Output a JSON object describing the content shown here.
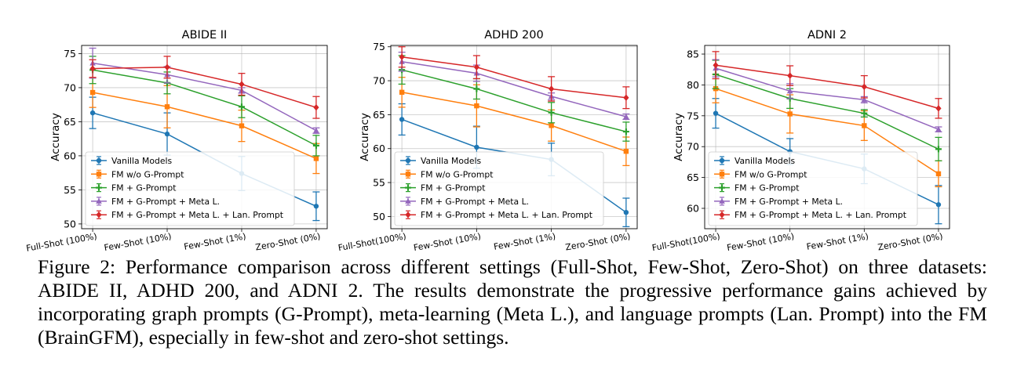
{
  "caption": "Figure 2: Performance comparison across different settings (Full-Shot, Few-Shot, Zero-Shot) on three datasets: ABIDE II, ADHD 200, and ADNI 2. The results demonstrate the progressive performance gains achieved by incorporating graph prompts (G-Prompt), meta-learning (Meta L.), and language prompts (Lan. Prompt) into the FM (BrainGFM), especially in few-shot and zero-shot settings.",
  "chart_data": [
    {
      "type": "line",
      "title": "ABIDE II",
      "ylabel": "Accuracy",
      "xlabel": "",
      "categories": [
        "Full-Shot (100%)",
        "Few-Shot (10%)",
        "Few-Shot (1%)",
        "Zero-Shot (0%)"
      ],
      "ylim": [
        49.3,
        76.2
      ],
      "yticks": [
        50,
        55,
        60,
        65,
        70,
        75
      ],
      "grid": true,
      "legend_position": "lower-left",
      "series": [
        {
          "name": "Vanilla Models",
          "color": "#1f77b4",
          "marker": "circle",
          "values": [
            66.3,
            63.2,
            57.4,
            52.6
          ],
          "errors": [
            2.3,
            3.1,
            2.5,
            2.1
          ]
        },
        {
          "name": "FM w/o G-Prompt",
          "color": "#ff7f0e",
          "marker": "square",
          "values": [
            69.3,
            67.2,
            64.4,
            59.6
          ],
          "errors": [
            2.2,
            3.1,
            2.3,
            2.2
          ]
        },
        {
          "name": "FM + G-Prompt",
          "color": "#2ca02c",
          "marker": "plus",
          "values": [
            72.6,
            70.7,
            67.2,
            61.5
          ],
          "errors": [
            2.0,
            1.6,
            1.6,
            1.5
          ]
        },
        {
          "name": "FM + G-Prompt + Meta L.",
          "color": "#9467bd",
          "marker": "triangle",
          "values": [
            73.6,
            71.9,
            69.6,
            63.7
          ],
          "errors": [
            2.2,
            1.2,
            0.4,
            0.4
          ]
        },
        {
          "name": "FM + G-Prompt + Meta L. + Lan. Prompt",
          "color": "#d62728",
          "marker": "diamond",
          "values": [
            72.8,
            73.0,
            70.5,
            67.1
          ],
          "errors": [
            1.3,
            1.6,
            1.6,
            1.6
          ]
        }
      ]
    },
    {
      "type": "line",
      "title": "ADHD 200",
      "ylabel": "Accuracy",
      "xlabel": "",
      "categories": [
        "Full-Shot(100%)",
        "Few-Shot (10%)",
        "Few-Shot (1%)",
        "Zero-Shot (0%)"
      ],
      "ylim": [
        48.2,
        75.2
      ],
      "yticks": [
        50,
        55,
        60,
        65,
        70,
        75
      ],
      "grid": true,
      "legend_position": "lower-left",
      "series": [
        {
          "name": "Vanilla Models",
          "color": "#1f77b4",
          "marker": "circle",
          "values": [
            64.3,
            60.2,
            58.4,
            50.6
          ],
          "errors": [
            2.3,
            3.1,
            2.4,
            2.1
          ]
        },
        {
          "name": "FM w/o G-Prompt",
          "color": "#ff7f0e",
          "marker": "square",
          "values": [
            68.3,
            66.3,
            63.4,
            59.6
          ],
          "errors": [
            2.2,
            3.1,
            2.3,
            2.1
          ]
        },
        {
          "name": "FM + G-Prompt",
          "color": "#2ca02c",
          "marker": "plus",
          "values": [
            71.6,
            68.8,
            65.3,
            62.5
          ],
          "errors": [
            2.1,
            1.5,
            1.5,
            1.4
          ]
        },
        {
          "name": "FM + G-Prompt + Meta L.",
          "color": "#9467bd",
          "marker": "triangle",
          "values": [
            72.8,
            71.1,
            67.7,
            64.7
          ],
          "errors": [
            1.4,
            1.2,
            0.5,
            0.4
          ]
        },
        {
          "name": "FM + G-Prompt + Meta L. + Lan. Prompt",
          "color": "#d62728",
          "marker": "diamond",
          "values": [
            73.5,
            72.0,
            68.8,
            67.5
          ],
          "errors": [
            1.5,
            1.7,
            1.8,
            1.6
          ]
        }
      ]
    },
    {
      "type": "line",
      "title": "ADNI 2",
      "ylabel": "Accuracy",
      "xlabel": "",
      "categories": [
        "Full-Shot(100%)",
        "Few-Shot (10%)",
        "Few-Shot (1%)",
        "Zero-Shot (0%)"
      ],
      "ylim": [
        56.7,
        86.4
      ],
      "yticks": [
        60,
        65,
        70,
        75,
        80,
        85
      ],
      "grid": true,
      "legend_position": "lower-left",
      "series": [
        {
          "name": "Vanilla Models",
          "color": "#1f77b4",
          "marker": "circle",
          "values": [
            75.4,
            69.2,
            66.4,
            60.6
          ],
          "errors": [
            2.4,
            2.1,
            2.4,
            3.1
          ]
        },
        {
          "name": "FM w/o G-Prompt",
          "color": "#ff7f0e",
          "marker": "square",
          "values": [
            79.4,
            75.3,
            73.4,
            65.6
          ],
          "errors": [
            2.3,
            3.1,
            2.4,
            2.1
          ]
        },
        {
          "name": "FM + G-Prompt",
          "color": "#2ca02c",
          "marker": "plus",
          "values": [
            81.7,
            77.8,
            75.4,
            69.6
          ],
          "errors": [
            2.3,
            1.6,
            0.6,
            1.9
          ]
        },
        {
          "name": "FM + G-Prompt + Meta L.",
          "color": "#9467bd",
          "marker": "triangle",
          "values": [
            82.7,
            79.0,
            77.6,
            72.8
          ],
          "errors": [
            1.4,
            1.2,
            0.5,
            0.4
          ]
        },
        {
          "name": "FM + G-Prompt + Meta L. + Lan. Prompt",
          "color": "#d62728",
          "marker": "diamond",
          "values": [
            83.2,
            81.5,
            79.7,
            76.2
          ],
          "errors": [
            2.2,
            1.6,
            1.8,
            1.6
          ]
        }
      ]
    }
  ]
}
